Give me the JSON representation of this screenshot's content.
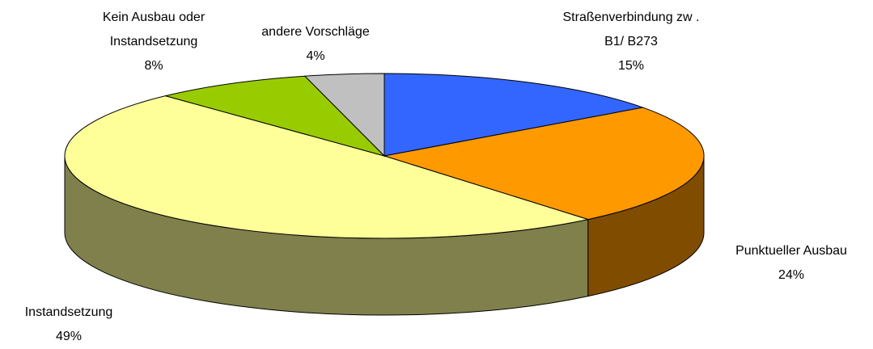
{
  "chart_data": {
    "type": "pie",
    "three_d": true,
    "categories": [
      "Straßenverbindung zw .\nB1/ B273",
      "Punktueller Ausbau",
      "Instandsetzung",
      "Kein Ausbau oder\nInstandsetzung",
      "andere Vorschläge"
    ],
    "values": [
      15,
      24,
      49,
      8,
      4
    ],
    "value_labels": [
      "15%",
      "24%",
      "49%",
      "8%",
      "4%"
    ],
    "colors": [
      "#3366ff",
      "#ff9900",
      "#ffff99",
      "#99cc00",
      "#c0c0c0"
    ]
  }
}
